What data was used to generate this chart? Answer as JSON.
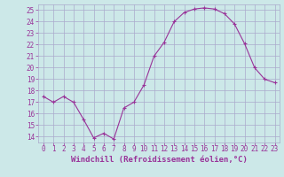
{
  "x": [
    0,
    1,
    2,
    3,
    4,
    5,
    6,
    7,
    8,
    9,
    10,
    11,
    12,
    13,
    14,
    15,
    16,
    17,
    18,
    19,
    20,
    21,
    22,
    23
  ],
  "y": [
    17.5,
    17.0,
    17.5,
    17.0,
    15.5,
    13.9,
    14.3,
    13.8,
    16.5,
    17.0,
    18.5,
    21.0,
    22.2,
    24.0,
    24.8,
    25.1,
    25.2,
    25.1,
    24.7,
    23.8,
    22.1,
    20.0,
    19.0,
    18.7
  ],
  "ylim": [
    13.5,
    25.5
  ],
  "yticks": [
    14,
    15,
    16,
    17,
    18,
    19,
    20,
    21,
    22,
    23,
    24,
    25
  ],
  "xticks": [
    0,
    1,
    2,
    3,
    4,
    5,
    6,
    7,
    8,
    9,
    10,
    11,
    12,
    13,
    14,
    15,
    16,
    17,
    18,
    19,
    20,
    21,
    22,
    23
  ],
  "xlabel": "Windchill (Refroidissement éolien,°C)",
  "line_color": "#993399",
  "marker": "+",
  "bg_color": "#cce8e8",
  "grid_color": "#aaaacc",
  "tick_label_color": "#993399",
  "axis_label_color": "#993399",
  "xlabel_fontsize": 6.5,
  "tick_fontsize": 5.5
}
